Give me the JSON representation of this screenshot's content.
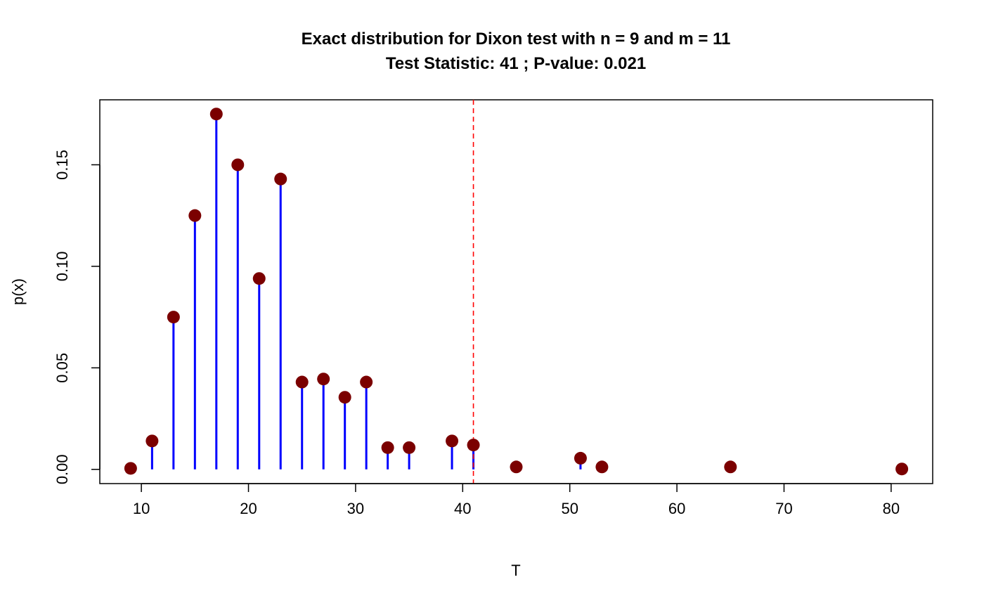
{
  "chart_data": {
    "type": "stem",
    "title": "Exact distribution for Dixon test with n = 9 and m = 11",
    "subtitle": "Test Statistic: 41 ; P-value: 0.021",
    "xlabel": "T",
    "ylabel": "p(x)",
    "xlim": [
      6.12,
      83.88
    ],
    "ylim": [
      -0.007,
      0.182
    ],
    "x_ticks": [
      "10",
      "20",
      "30",
      "40",
      "50",
      "60",
      "70",
      "80"
    ],
    "y_ticks": [
      "0.00",
      "0.05",
      "0.10",
      "0.15"
    ],
    "x": [
      9,
      11,
      13,
      15,
      17,
      19,
      21,
      23,
      25,
      27,
      29,
      31,
      33,
      35,
      39,
      41,
      45,
      51,
      53,
      65,
      81
    ],
    "y": [
      0.0005,
      0.014,
      0.075,
      0.125,
      0.175,
      0.15,
      0.094,
      0.143,
      0.043,
      0.0445,
      0.0355,
      0.043,
      0.0107,
      0.0107,
      0.014,
      0.012,
      0.0012,
      0.0055,
      0.0012,
      0.0012,
      0.0002
    ],
    "reference_line": {
      "x": 41,
      "style": "dashed",
      "color": "#ff0000"
    },
    "stem_color": "#0000ff",
    "point_color": "#7b0000",
    "grid": false,
    "legend": "none"
  }
}
